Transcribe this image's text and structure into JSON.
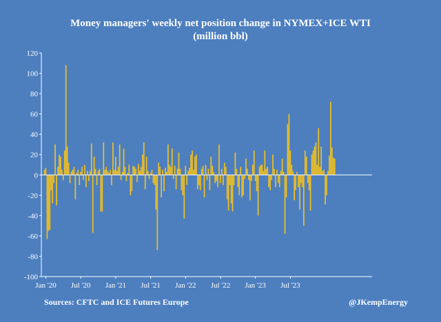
{
  "title_line1": "Money managers' weekly net position change in NYMEX+ICE WTI",
  "title_line2": "(million bbl)",
  "source": "Sources: CFTC and ICE Futures Europe",
  "credit": "@JKempEnergy",
  "colors": {
    "background": "#4d7fbf",
    "bar": "#f2c01f",
    "zero_line": "#dce6f2",
    "axis": "#ffffff"
  },
  "chart_data": {
    "type": "bar",
    "ylim": [
      -100,
      120
    ],
    "yticks": [
      120,
      100,
      80,
      60,
      40,
      20,
      0,
      -20,
      -40,
      -60,
      -80,
      -100
    ],
    "grid": false,
    "xtick_labels": [
      "Jan '20",
      "Jul '20",
      "Jan '21",
      "Jul '21",
      "Jan '22",
      "Jul '22",
      "Jan '23",
      "Jul '23"
    ],
    "values": [
      5,
      7,
      -63,
      -55,
      -54,
      -15,
      -28,
      -8,
      30,
      -30,
      8,
      20,
      18,
      5,
      -5,
      24,
      108,
      28,
      12,
      -8,
      3,
      5,
      8,
      -24,
      2,
      5,
      -10,
      3,
      8,
      -5,
      10,
      -12,
      4,
      -6,
      4,
      31,
      -57,
      18,
      6,
      -10,
      4,
      6,
      -36,
      -36,
      32,
      5,
      8,
      4,
      2,
      5,
      -10,
      32,
      5,
      18,
      4,
      8,
      30,
      -5,
      3,
      26,
      8,
      -6,
      2,
      10,
      -20,
      -16,
      9,
      8,
      6,
      -7,
      11,
      4,
      8,
      20,
      32,
      -14,
      18,
      4,
      -4,
      2,
      5,
      -8,
      -10,
      -34,
      -74,
      12,
      8,
      -22,
      5,
      -16,
      7,
      3,
      30,
      10,
      8,
      26,
      -4,
      9,
      -14,
      6,
      22,
      6,
      -15,
      -20,
      -43,
      9,
      -10,
      4,
      7,
      20,
      24,
      5,
      18,
      20,
      -14,
      -10,
      -15,
      6,
      9,
      -22,
      10,
      -5,
      6,
      -15,
      18,
      9,
      3,
      -8,
      -6,
      -12,
      30,
      -8,
      6,
      -10,
      12,
      8,
      -24,
      -35,
      -10,
      -28,
      -36,
      -10,
      22,
      6,
      -12,
      -20,
      8,
      -22,
      -20,
      -4,
      16,
      6,
      -5,
      -25,
      -6,
      10,
      24,
      -6,
      -16,
      -40,
      8,
      10,
      10,
      4,
      24,
      6,
      8,
      -12,
      -15,
      -5,
      20,
      6,
      -12,
      5,
      -8,
      -12,
      4,
      16,
      3,
      -58,
      -22,
      50,
      60,
      24,
      10,
      4,
      -25,
      -15,
      3,
      -12,
      -34,
      -8,
      -12,
      -50,
      24,
      18,
      -8,
      -15,
      -35,
      20,
      24,
      28,
      32,
      10,
      46,
      8,
      28,
      4,
      5,
      -29,
      -20,
      4,
      19,
      72,
      27,
      17,
      16
    ]
  }
}
